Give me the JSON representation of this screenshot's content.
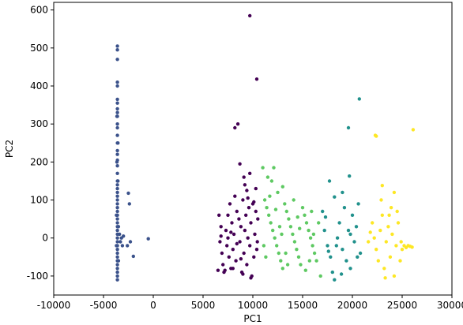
{
  "chart_data": {
    "type": "scatter",
    "title": "",
    "xlabel": "PC1",
    "ylabel": "PC2",
    "xlim": [
      -10000,
      30000
    ],
    "ylim": [
      -150,
      620
    ],
    "xticks": [
      -10000,
      -5000,
      0,
      5000,
      10000,
      15000,
      20000,
      25000,
      30000
    ],
    "yticks": [
      -100,
      0,
      100,
      200,
      300,
      400,
      500,
      600
    ],
    "grid": false,
    "legend": "none",
    "series": [
      {
        "color": "#440154",
        "points": [
          [
            9700,
            585
          ],
          [
            10400,
            418
          ],
          [
            8200,
            290
          ],
          [
            8500,
            300
          ],
          [
            8700,
            195
          ],
          [
            9100,
            160
          ],
          [
            9400,
            125
          ],
          [
            6600,
            60
          ],
          [
            6800,
            30
          ],
          [
            6700,
            -10
          ],
          [
            6900,
            -40
          ],
          [
            7000,
            -70
          ],
          [
            7100,
            -90
          ],
          [
            7300,
            20
          ],
          [
            7400,
            -20
          ],
          [
            7500,
            60
          ],
          [
            7600,
            -50
          ],
          [
            7700,
            90
          ],
          [
            7800,
            -80
          ],
          [
            7900,
            40
          ],
          [
            8000,
            -30
          ],
          [
            8100,
            10
          ],
          [
            8200,
            110
          ],
          [
            8300,
            -60
          ],
          [
            8400,
            70
          ],
          [
            8600,
            50
          ],
          [
            8700,
            -10
          ],
          [
            8800,
            30
          ],
          [
            8900,
            -90
          ],
          [
            9000,
            100
          ],
          [
            9100,
            -40
          ],
          [
            9200,
            20
          ],
          [
            9300,
            60
          ],
          [
            9400,
            -70
          ],
          [
            9500,
            0
          ],
          [
            9600,
            80
          ],
          [
            9700,
            -20
          ],
          [
            9800,
            40
          ],
          [
            9900,
            -100
          ],
          [
            10000,
            90
          ],
          [
            10100,
            -50
          ],
          [
            10200,
            10
          ],
          [
            10300,
            70
          ],
          [
            10400,
            -30
          ],
          [
            10500,
            50
          ],
          [
            6500,
            -85
          ],
          [
            7200,
            -85
          ],
          [
            8000,
            -80
          ],
          [
            9000,
            -95
          ],
          [
            9800,
            -105
          ],
          [
            7500,
            0
          ],
          [
            8400,
            -15
          ],
          [
            9200,
            140
          ],
          [
            9700,
            170
          ],
          [
            10300,
            130
          ],
          [
            6800,
            5
          ],
          [
            7800,
            15
          ],
          [
            8800,
            -55
          ],
          [
            9500,
            105
          ],
          [
            10100,
            95
          ],
          [
            10450,
            -10
          ]
        ]
      },
      {
        "color": "#3b528b",
        "points": [
          [
            -3600,
            505
          ],
          [
            -3600,
            495
          ],
          [
            -3600,
            470
          ],
          [
            -3600,
            410
          ],
          [
            -3600,
            400
          ],
          [
            -3600,
            365
          ],
          [
            -3600,
            355
          ],
          [
            -3600,
            340
          ],
          [
            -3600,
            330
          ],
          [
            -3600,
            320
          ],
          [
            -3600,
            300
          ],
          [
            -3600,
            290
          ],
          [
            -3600,
            270
          ],
          [
            -3600,
            250
          ],
          [
            -3600,
            230
          ],
          [
            -3600,
            220
          ],
          [
            -3600,
            205
          ],
          [
            -3600,
            190
          ],
          [
            -3600,
            170
          ],
          [
            -3600,
            150
          ],
          [
            -3600,
            140
          ],
          [
            -3600,
            130
          ],
          [
            -3600,
            120
          ],
          [
            -3600,
            110
          ],
          [
            -3600,
            100
          ],
          [
            -3600,
            90
          ],
          [
            -3600,
            80
          ],
          [
            -3600,
            70
          ],
          [
            -3600,
            60
          ],
          [
            -3600,
            50
          ],
          [
            -3600,
            40
          ],
          [
            -3600,
            30
          ],
          [
            -3600,
            20
          ],
          [
            -3600,
            10
          ],
          [
            -3600,
            0
          ],
          [
            -3600,
            -10
          ],
          [
            -3600,
            -20
          ],
          [
            -3600,
            -30
          ],
          [
            -3600,
            -40
          ],
          [
            -3600,
            -50
          ],
          [
            -3600,
            -60
          ],
          [
            -3600,
            -70
          ],
          [
            -3600,
            -80
          ],
          [
            -3600,
            -90
          ],
          [
            -3600,
            -100
          ],
          [
            -3600,
            -110
          ],
          [
            -3700,
            60
          ],
          [
            -3700,
            -20
          ],
          [
            -3500,
            30
          ],
          [
            -3500,
            -60
          ],
          [
            -3400,
            10
          ],
          [
            -3300,
            -10
          ],
          [
            -3200,
            0
          ],
          [
            -3100,
            -20
          ],
          [
            -3000,
            5
          ],
          [
            -2500,
            118
          ],
          [
            -2400,
            90
          ],
          [
            -2600,
            -20
          ],
          [
            -2300,
            -10
          ],
          [
            -2000,
            -48
          ],
          [
            -500,
            -2
          ],
          [
            -3550,
            150
          ],
          [
            -3650,
            200
          ],
          [
            -3550,
            250
          ],
          [
            -3650,
            320
          ]
        ]
      },
      {
        "color": "#21918c",
        "points": [
          [
            20700,
            366
          ],
          [
            19600,
            290
          ],
          [
            19700,
            163
          ],
          [
            17700,
            150
          ],
          [
            18200,
            108
          ],
          [
            17000,
            70
          ],
          [
            17200,
            20
          ],
          [
            17500,
            -20
          ],
          [
            17800,
            -50
          ],
          [
            18000,
            -90
          ],
          [
            18200,
            -110
          ],
          [
            18500,
            0
          ],
          [
            18700,
            40
          ],
          [
            19000,
            -30
          ],
          [
            19200,
            80
          ],
          [
            19400,
            -60
          ],
          [
            19600,
            20
          ],
          [
            19800,
            -80
          ],
          [
            20000,
            60
          ],
          [
            20200,
            -10
          ],
          [
            20400,
            30
          ],
          [
            20600,
            90
          ],
          [
            20800,
            -40
          ],
          [
            19000,
            120
          ],
          [
            18400,
            -20
          ],
          [
            17600,
            -35
          ],
          [
            19800,
            10
          ],
          [
            20500,
            -50
          ],
          [
            18900,
            -95
          ],
          [
            17300,
            55
          ]
        ]
      },
      {
        "color": "#5ec962",
        "points": [
          [
            11000,
            185
          ],
          [
            12100,
            185
          ],
          [
            11500,
            160
          ],
          [
            13000,
            135
          ],
          [
            12500,
            120
          ],
          [
            11200,
            100
          ],
          [
            11400,
            80
          ],
          [
            11600,
            60
          ],
          [
            11800,
            40
          ],
          [
            12000,
            20
          ],
          [
            12200,
            0
          ],
          [
            12400,
            -20
          ],
          [
            12600,
            -40
          ],
          [
            12800,
            -60
          ],
          [
            13000,
            -80
          ],
          [
            13200,
            90
          ],
          [
            13400,
            70
          ],
          [
            13600,
            50
          ],
          [
            13800,
            30
          ],
          [
            14000,
            10
          ],
          [
            14200,
            -10
          ],
          [
            14400,
            -30
          ],
          [
            14600,
            -50
          ],
          [
            14800,
            -70
          ],
          [
            15000,
            80
          ],
          [
            15200,
            60
          ],
          [
            15400,
            40
          ],
          [
            15600,
            20
          ],
          [
            15800,
            0
          ],
          [
            16000,
            -20
          ],
          [
            16200,
            -40
          ],
          [
            16400,
            -60
          ],
          [
            16600,
            40
          ],
          [
            16800,
            -100
          ],
          [
            11100,
            -20
          ],
          [
            11300,
            -50
          ],
          [
            11700,
            110
          ],
          [
            12300,
            75
          ],
          [
            12900,
            10
          ],
          [
            13500,
            -70
          ],
          [
            14100,
            100
          ],
          [
            14700,
            25
          ],
          [
            15300,
            -85
          ],
          [
            15900,
            70
          ],
          [
            11900,
            150
          ],
          [
            13300,
            -40
          ],
          [
            14500,
            55
          ],
          [
            15700,
            -60
          ],
          [
            12700,
            30
          ],
          [
            16100,
            10
          ]
        ]
      },
      {
        "color": "#fde725",
        "points": [
          [
            26100,
            285
          ],
          [
            22300,
            270
          ],
          [
            22400,
            268
          ],
          [
            23000,
            138
          ],
          [
            24200,
            120
          ],
          [
            23900,
            80
          ],
          [
            22000,
            40
          ],
          [
            22200,
            0
          ],
          [
            22400,
            -30
          ],
          [
            22600,
            -60
          ],
          [
            22800,
            20
          ],
          [
            23000,
            60
          ],
          [
            23200,
            -80
          ],
          [
            23400,
            -10
          ],
          [
            23600,
            30
          ],
          [
            23800,
            -50
          ],
          [
            24000,
            10
          ],
          [
            24200,
            -100
          ],
          [
            24400,
            -20
          ],
          [
            24600,
            40
          ],
          [
            24800,
            -60
          ],
          [
            25000,
            -30
          ],
          [
            25200,
            -20
          ],
          [
            25400,
            -25
          ],
          [
            25600,
            -20
          ],
          [
            25800,
            -22
          ],
          [
            26000,
            -24
          ],
          [
            21600,
            -10
          ],
          [
            21800,
            15
          ],
          [
            23300,
            -105
          ],
          [
            24900,
            -10
          ],
          [
            23700,
            60
          ],
          [
            22900,
            100
          ],
          [
            24500,
            70
          ]
        ]
      }
    ]
  }
}
